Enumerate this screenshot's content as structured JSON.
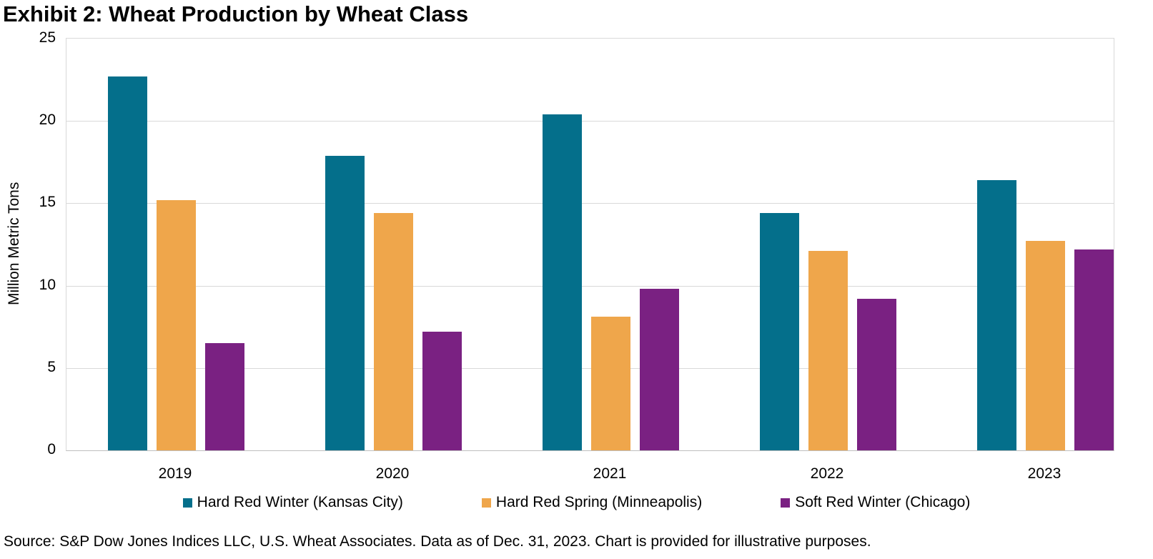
{
  "title": "Exhibit 2: Wheat Production by Wheat Class",
  "chart_data": {
    "type": "bar",
    "categories": [
      "2019",
      "2020",
      "2021",
      "2022",
      "2023"
    ],
    "series": [
      {
        "name": "Hard Red Winter (Kansas City)",
        "color": "#046f8b",
        "values": [
          22.7,
          17.9,
          20.4,
          14.4,
          16.4
        ]
      },
      {
        "name": "Hard Red Spring (Minneapolis)",
        "color": "#efa64b",
        "values": [
          15.2,
          14.4,
          8.1,
          12.1,
          12.7
        ]
      },
      {
        "name": "Soft Red Winter (Chicago)",
        "color": "#7a2182",
        "values": [
          6.5,
          7.2,
          9.8,
          9.2,
          12.2
        ]
      }
    ],
    "title": "Exhibit 2: Wheat Production by Wheat Class",
    "xlabel": "",
    "ylabel": "Million Metric Tons",
    "ylim": [
      0,
      25
    ],
    "yticks": [
      0,
      5,
      10,
      15,
      20,
      25
    ],
    "grid": true,
    "legend_position": "bottom"
  },
  "source_note": "Source: S&P Dow Jones Indices LLC, U.S. Wheat Associates. Data as of Dec. 31, 2023. Chart is provided for illustrative purposes."
}
